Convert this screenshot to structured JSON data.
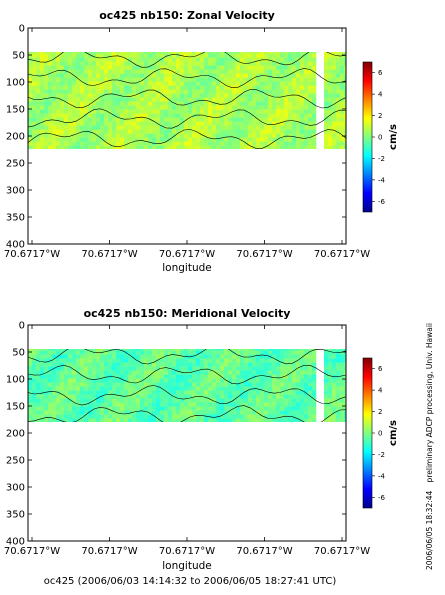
{
  "figure": {
    "footer": "oc425 (2006/06/03 14:14:32 to 2006/06/05 18:27:41 UTC)",
    "side_note": "preliminary ADCP processing,  Univ. Hawaii",
    "date_stamp": "2006/06/05 18:32:44"
  },
  "chart_data": [
    {
      "type": "heatmap",
      "title": "oc425 nb150: Zonal Velocity",
      "xlabel": "longitude",
      "xticklabels": [
        "70.6717°W",
        "70.6717°W",
        "70.6717°W",
        "70.6717°W",
        "70.6717°W"
      ],
      "ylabel": "",
      "ylim": [
        400,
        0
      ],
      "yticks": [
        0,
        50,
        100,
        150,
        200,
        250,
        300,
        350,
        400
      ],
      "depth_range": [
        40,
        220
      ],
      "colorbar": {
        "label": "cm/s",
        "ticks": [
          -6,
          -4,
          -2,
          0,
          2,
          4,
          6
        ],
        "lim": [
          -7,
          7
        ]
      },
      "value_range_shown": [
        -1,
        2
      ],
      "grid": false
    },
    {
      "type": "heatmap",
      "title": "oc425 nb150: Meridional Velocity",
      "xlabel": "longitude",
      "xticklabels": [
        "70.6717°W",
        "70.6717°W",
        "70.6717°W",
        "70.6717°W",
        "70.6717°W"
      ],
      "ylabel": "",
      "ylim": [
        400,
        0
      ],
      "yticks": [
        0,
        50,
        100,
        150,
        200,
        250,
        300,
        350,
        400
      ],
      "depth_range": [
        40,
        220
      ],
      "colorbar": {
        "label": "cm/s",
        "ticks": [
          -6,
          -4,
          -2,
          0,
          2,
          4,
          6
        ],
        "lim": [
          -7,
          7
        ]
      },
      "value_range_shown": [
        -2,
        1
      ],
      "grid": false
    }
  ]
}
